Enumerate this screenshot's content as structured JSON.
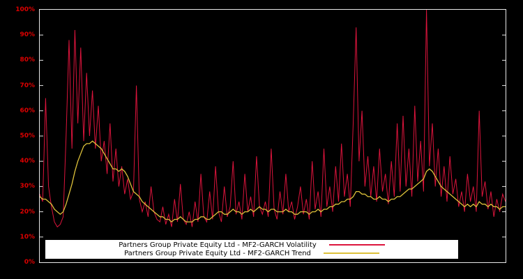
{
  "colors": {
    "background": "#000000",
    "plot_border": "#e8e8e8",
    "axis_label": "#dd0000",
    "tick": "#e8e8e8",
    "legend_bg": "#ffffff",
    "legend_text": "#000000"
  },
  "chart_data": {
    "type": "line",
    "title": "",
    "xlabel": "",
    "ylabel": "",
    "ylim": [
      0,
      100
    ],
    "grid": false,
    "legend_position": "bottom-center",
    "y_tick_labels": [
      "0%",
      "10%",
      "20%",
      "30%",
      "40%",
      "50%",
      "60%",
      "70%",
      "80%",
      "90%",
      "100%"
    ],
    "series": [
      {
        "name": "Partners Group Private Equity Ltd - MF2-GARCH Volatility",
        "color": "#dc143c",
        "values": [
          27,
          24,
          65,
          30,
          22,
          16,
          14,
          15,
          18,
          50,
          88,
          45,
          92,
          55,
          85,
          48,
          75,
          50,
          68,
          45,
          62,
          40,
          48,
          35,
          55,
          32,
          45,
          30,
          38,
          27,
          33,
          25,
          28,
          70,
          25,
          20,
          24,
          18,
          30,
          20,
          17,
          16,
          22,
          15,
          19,
          14,
          25,
          16,
          31,
          17,
          15,
          20,
          14,
          24,
          16,
          35,
          18,
          16,
          28,
          17,
          38,
          20,
          16,
          30,
          18,
          22,
          40,
          19,
          24,
          17,
          35,
          20,
          26,
          18,
          42,
          22,
          19,
          24,
          18,
          45,
          21,
          17,
          28,
          19,
          35,
          20,
          24,
          17,
          22,
          30,
          19,
          25,
          17,
          40,
          21,
          28,
          18,
          45,
          22,
          30,
          20,
          38,
          24,
          47,
          26,
          35,
          22,
          55,
          93,
          40,
          60,
          30,
          42,
          26,
          38,
          24,
          45,
          28,
          35,
          23,
          40,
          26,
          55,
          28,
          58,
          30,
          45,
          26,
          62,
          32,
          48,
          28,
          100,
          38,
          55,
          30,
          45,
          26,
          38,
          24,
          42,
          27,
          33,
          22,
          28,
          20,
          35,
          24,
          30,
          20,
          60,
          26,
          32,
          21,
          28,
          18,
          25,
          20,
          27,
          24
        ]
      },
      {
        "name": "Partners Group Private Equity Ltd - MF2-GARCH Trend",
        "color": "#ddc13a",
        "values": [
          26,
          25,
          25,
          24,
          23,
          21,
          20,
          19,
          20,
          23,
          27,
          31,
          36,
          40,
          43,
          46,
          47,
          47,
          48,
          47,
          46,
          45,
          43,
          41,
          39,
          37,
          37,
          36,
          37,
          36,
          34,
          31,
          28,
          27,
          26,
          24,
          23,
          22,
          21,
          20,
          19,
          18,
          18,
          17,
          17,
          16,
          17,
          17,
          18,
          17,
          16,
          16,
          16,
          17,
          17,
          18,
          18,
          17,
          17,
          18,
          19,
          20,
          20,
          19,
          19,
          20,
          21,
          20,
          20,
          19,
          20,
          20,
          21,
          20,
          21,
          22,
          21,
          21,
          20,
          21,
          21,
          20,
          20,
          20,
          21,
          20,
          20,
          19,
          19,
          20,
          20,
          20,
          19,
          20,
          20,
          21,
          20,
          21,
          21,
          22,
          22,
          23,
          23,
          24,
          24,
          25,
          25,
          26,
          28,
          28,
          27,
          27,
          26,
          26,
          25,
          25,
          26,
          25,
          25,
          24,
          25,
          25,
          26,
          26,
          27,
          28,
          29,
          29,
          30,
          31,
          32,
          33,
          36,
          37,
          36,
          34,
          32,
          30,
          29,
          28,
          27,
          26,
          25,
          24,
          23,
          22,
          23,
          22,
          23,
          22,
          24,
          23,
          23,
          22,
          23,
          22,
          22,
          21,
          22,
          22
        ]
      }
    ]
  }
}
